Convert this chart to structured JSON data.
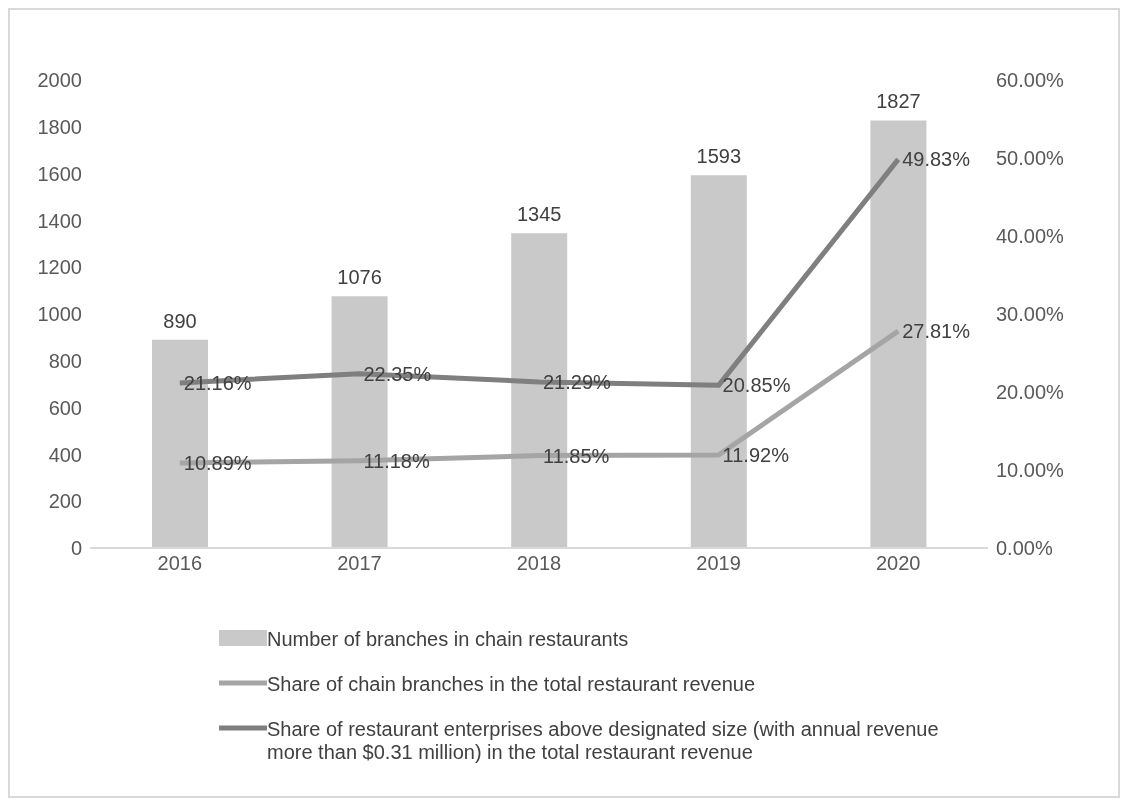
{
  "chart_data": {
    "type": "bar",
    "categories": [
      "2016",
      "2017",
      "2018",
      "2019",
      "2020"
    ],
    "series": [
      {
        "name": "Number of branches in chain restaurants",
        "color": "#c9c9c9",
        "values": [
          890,
          1076,
          1345,
          1593,
          1827
        ]
      },
      {
        "name": "Share of chain branches in the total restaurant revenue",
        "type": "line",
        "axis": "y2",
        "color": "#a5a5a5",
        "values": [
          10.89,
          11.18,
          11.85,
          11.92,
          27.81
        ],
        "value_labels": [
          "10.89%",
          "11.18%",
          "11.85%",
          "11.92%",
          "27.81%"
        ]
      },
      {
        "name": "Share of restaurant enterprises above designated size (with annual revenue more than $0.31 million) in the total restaurant revenue",
        "type": "line",
        "axis": "y2",
        "color": "#7f7f7f",
        "values": [
          21.16,
          22.35,
          21.29,
          20.85,
          49.83
        ],
        "value_labels": [
          "21.16%",
          "22.35%",
          "21.29%",
          "20.85%",
          "49.83%"
        ]
      }
    ],
    "ylim": [
      0,
      2000
    ],
    "yticks": [
      0,
      200,
      400,
      600,
      800,
      1000,
      1200,
      1400,
      1600,
      1800,
      2000
    ],
    "y2lim": [
      0,
      60
    ],
    "y2ticks": [
      {
        "value": 0,
        "label": "0.00%"
      },
      {
        "value": 10,
        "label": "10.00%"
      },
      {
        "value": 20,
        "label": "20.00%"
      },
      {
        "value": 30,
        "label": "30.00%"
      },
      {
        "value": 40,
        "label": "40.00%"
      },
      {
        "value": 50,
        "label": "50.00%"
      },
      {
        "value": 60,
        "label": "60.00%"
      }
    ],
    "data_labels": true,
    "legend": "bottom",
    "marker": "none",
    "line_style": "solid"
  }
}
